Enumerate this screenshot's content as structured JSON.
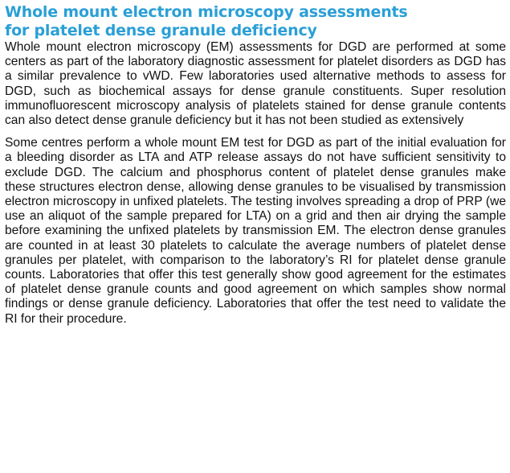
{
  "section": {
    "heading_line1": "Whole mount electron microscopy assessments",
    "heading_line2": "for platelet dense granule deficiency",
    "paragraphs": [
      "Whole mount electron microscopy (EM) assessments for DGD are performed at some centers as part of the laboratory diagnostic assessment for platelet disorders as DGD has a similar prevalence to vWD. Few laboratories used alternative methods to assess for DGD, such as biochemical assays for dense granule constituents. Super resolution immunofluorescent microscopy analysis of platelets stained for dense granule contents can also detect dense granule deficiency but it has not been studied as extensively",
      "Some centres perform a whole mount EM test for DGD as part of the initial evaluation for a bleeding disorder as LTA and ATP release assays do not have sufficient sensitivity to exclude DGD. The calcium and phosphorus content of platelet dense granules make these structures electron dense, allowing dense granules to be visualised by transmission electron microscopy in unfixed platelets. The testing involves spreading a drop of PRP (we use an aliquot of the sample prepared for LTA) on a grid and then air drying the sample before examining the unfixed platelets by transmission EM. The electron dense granules are counted in at least 30 platelets to calculate the average numbers of platelet dense granules per platelet, with comparison to the laboratory’s RI for platelet dense granule counts. Laboratories that offer this test generally show good agreement for the estimates of platelet dense granule counts and good agreement on which samples show normal findings or dense granule deficiency. Laboratories that offer the test need to validate the RI for their procedure."
    ]
  },
  "colors": {
    "heading": "#2a9fd6",
    "body_text": "#111111",
    "background": "#ffffff"
  }
}
